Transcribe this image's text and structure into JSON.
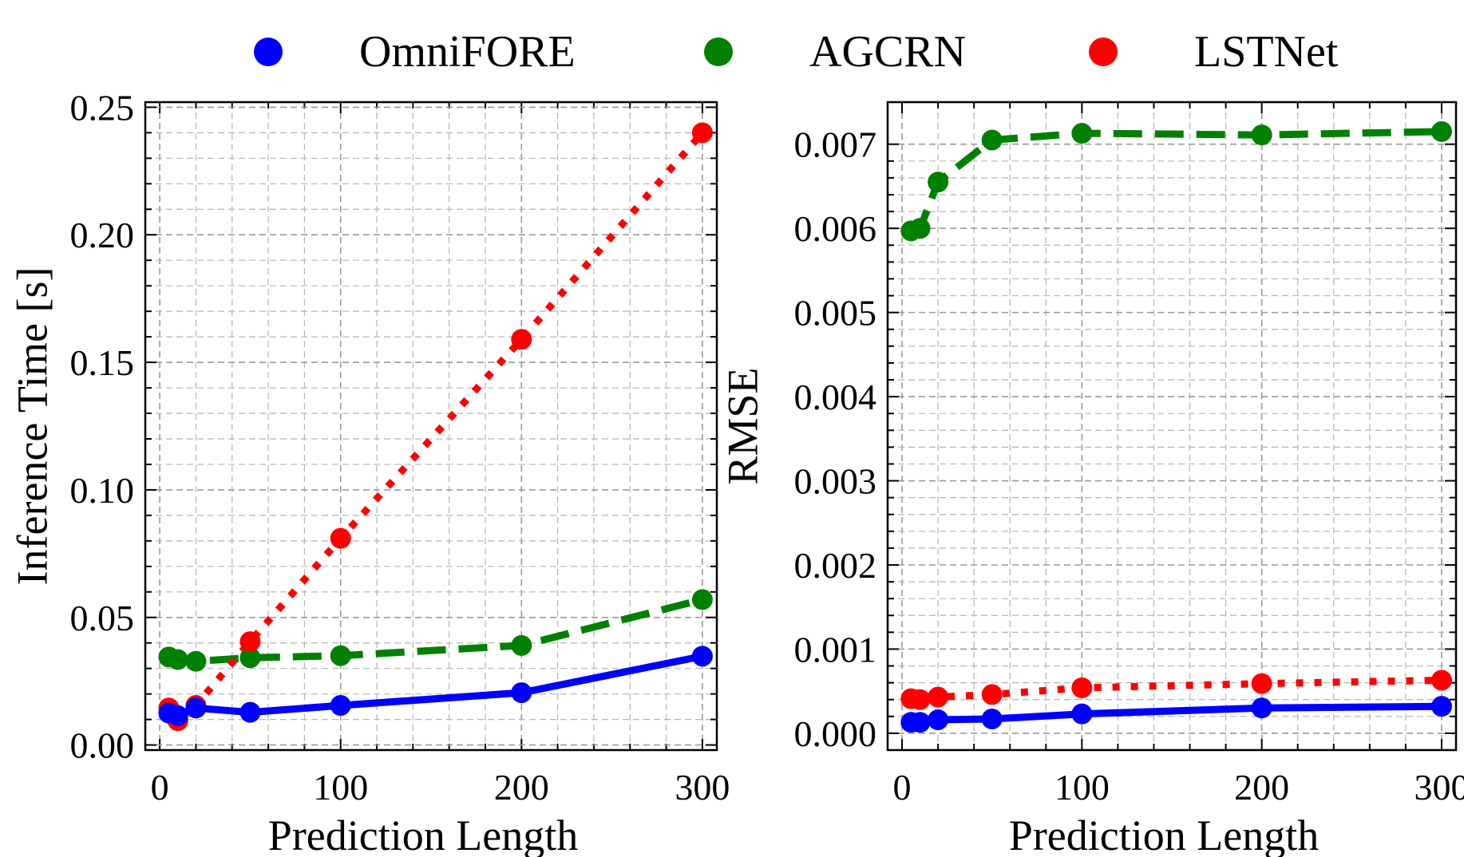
{
  "legend": {
    "items": [
      {
        "label": "OmniFORE",
        "color": "#0000ff"
      },
      {
        "label": "AGCRN",
        "color": "#008000"
      },
      {
        "label": "LSTNet",
        "color": "#ff0000"
      }
    ]
  },
  "chart_data": [
    {
      "type": "line",
      "title": "",
      "xlabel": "Prediction Length",
      "ylabel": "Inference Time [s]",
      "xlim": [
        -8,
        308
      ],
      "ylim": [
        -0.002,
        0.252
      ],
      "xticks": [
        0,
        100,
        200,
        300
      ],
      "xtick_labels": [
        "0",
        "100",
        "200",
        "300"
      ],
      "yticks": [
        0,
        0.05,
        0.1,
        0.15,
        0.2,
        0.25
      ],
      "ytick_labels": [
        "0.00",
        "0.05",
        "0.10",
        "0.15",
        "0.20",
        "0.25"
      ],
      "grid": true,
      "x": [
        5,
        10,
        20,
        50,
        100,
        200,
        300
      ],
      "series": [
        {
          "name": "OmniFORE",
          "color": "#0000ff",
          "style": "solid",
          "values": [
            0.0125,
            0.0115,
            0.0145,
            0.0128,
            0.0155,
            0.0205,
            0.0348
          ]
        },
        {
          "name": "AGCRN",
          "color": "#008000",
          "style": "dashed",
          "values": [
            0.0345,
            0.0335,
            0.0328,
            0.0342,
            0.035,
            0.039,
            0.057
          ]
        },
        {
          "name": "LSTNet",
          "color": "#ff0000",
          "style": "dotted",
          "values": [
            0.0145,
            0.0095,
            0.0155,
            0.0405,
            0.081,
            0.159,
            0.24
          ]
        }
      ]
    },
    {
      "type": "line",
      "title": "",
      "xlabel": "Prediction Length",
      "ylabel": "RMSE",
      "xlim": [
        -8,
        308
      ],
      "ylim": [
        -0.0002,
        0.0075
      ],
      "xticks": [
        0,
        100,
        200,
        300
      ],
      "xtick_labels": [
        "0",
        "100",
        "200",
        "300"
      ],
      "yticks": [
        0,
        0.001,
        0.002,
        0.003,
        0.004,
        0.005,
        0.006,
        0.007
      ],
      "ytick_labels": [
        "0.000",
        "0.001",
        "0.002",
        "0.003",
        "0.004",
        "0.005",
        "0.006",
        "0.007"
      ],
      "grid": true,
      "x": [
        5,
        10,
        20,
        50,
        100,
        200,
        300
      ],
      "series": [
        {
          "name": "OmniFORE",
          "color": "#0000ff",
          "style": "solid",
          "values": [
            0.00013,
            0.00013,
            0.00016,
            0.00017,
            0.00023,
            0.0003,
            0.00032
          ]
        },
        {
          "name": "AGCRN",
          "color": "#008000",
          "style": "dashed",
          "values": [
            0.00597,
            0.006,
            0.00655,
            0.00705,
            0.00713,
            0.00711,
            0.00715
          ]
        },
        {
          "name": "LSTNet",
          "color": "#ff0000",
          "style": "dotted",
          "values": [
            0.00041,
            0.0004,
            0.00043,
            0.00046,
            0.00054,
            0.00059,
            0.00063
          ]
        }
      ]
    }
  ]
}
